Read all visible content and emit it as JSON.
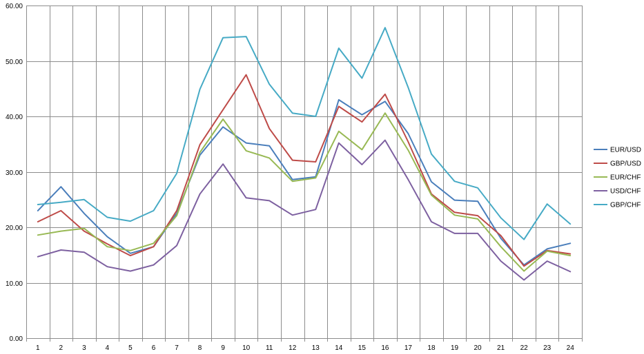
{
  "chart_data": {
    "type": "line",
    "title": "",
    "xlabel": "",
    "ylabel": "",
    "categories": [
      "1",
      "2",
      "3",
      "4",
      "5",
      "6",
      "7",
      "8",
      "9",
      "10",
      "11",
      "12",
      "13",
      "14",
      "15",
      "16",
      "17",
      "18",
      "19",
      "20",
      "21",
      "22",
      "23",
      "24"
    ],
    "ylim": [
      0,
      60
    ],
    "y_ticks": [
      "0.00",
      "10.00",
      "20.00",
      "30.00",
      "40.00",
      "50.00",
      "60.00"
    ],
    "grid": true,
    "legend_position": "right",
    "series": [
      {
        "name": "EUR/USD",
        "color": "#4a7ebb",
        "values": [
          23.0,
          27.3,
          22.5,
          18.3,
          15.3,
          16.5,
          22.5,
          33.0,
          38.1,
          35.2,
          34.7,
          28.6,
          29.1,
          43.0,
          40.3,
          42.7,
          36.9,
          28.2,
          24.9,
          24.7,
          18.0,
          13.2,
          16.1,
          17.1
        ]
      },
      {
        "name": "GBP/USD",
        "color": "#be4b48",
        "values": [
          21.0,
          23.0,
          19.3,
          17.0,
          14.9,
          16.5,
          23.0,
          34.9,
          41.2,
          47.5,
          37.8,
          32.1,
          31.8,
          41.8,
          39.0,
          44.0,
          35.4,
          26.0,
          22.7,
          22.1,
          18.5,
          13.0,
          15.8,
          15.2
        ]
      },
      {
        "name": "EUR/CHF",
        "color": "#98b954",
        "values": [
          18.6,
          19.3,
          19.8,
          16.5,
          15.8,
          17.1,
          22.1,
          33.5,
          39.5,
          33.8,
          32.5,
          28.3,
          28.9,
          37.3,
          34.0,
          40.6,
          33.9,
          25.8,
          22.2,
          21.5,
          16.5,
          12.1,
          15.7,
          14.9
        ]
      },
      {
        "name": "USD/CHF",
        "color": "#7d60a0",
        "values": [
          14.7,
          15.9,
          15.5,
          12.9,
          12.1,
          13.2,
          16.7,
          26.0,
          31.4,
          25.3,
          24.8,
          22.2,
          23.2,
          35.2,
          31.3,
          35.7,
          28.6,
          21.0,
          18.9,
          18.9,
          13.9,
          10.5,
          13.9,
          12.0
        ]
      },
      {
        "name": "GBP/CHF",
        "color": "#46aac5",
        "values": [
          24.1,
          24.5,
          25.0,
          21.8,
          21.1,
          23.0,
          29.7,
          44.9,
          54.2,
          54.4,
          45.8,
          40.6,
          40.0,
          52.3,
          46.9,
          56.0,
          45.2,
          33.2,
          28.3,
          27.1,
          21.7,
          17.8,
          24.2,
          20.6
        ]
      }
    ]
  }
}
